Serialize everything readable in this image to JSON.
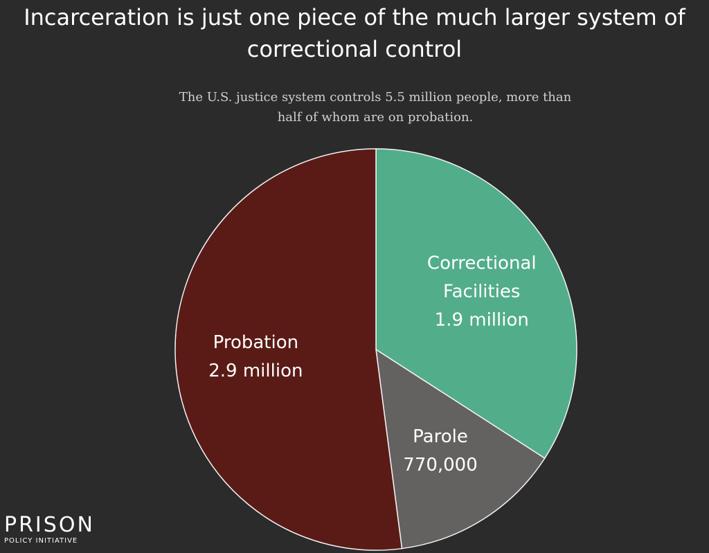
{
  "chart_data": {
    "type": "pie",
    "title": "Incarceration is just one piece of the much larger system of correctional control",
    "subtitle": "The U.S. justice system controls 5.5 million people, more than half of whom are on probation.",
    "categories": [
      "Correctional Facilities",
      "Parole",
      "Probation"
    ],
    "values": [
      1900000,
      770000,
      2900000
    ],
    "value_labels": [
      "1.9 million",
      "770,000",
      "2.9 million"
    ],
    "colors": [
      "#52ad8a",
      "#646261",
      "#5a1b17"
    ]
  },
  "logo": {
    "name": "PRISON",
    "tagline": "POLICY INITIATIVE"
  }
}
